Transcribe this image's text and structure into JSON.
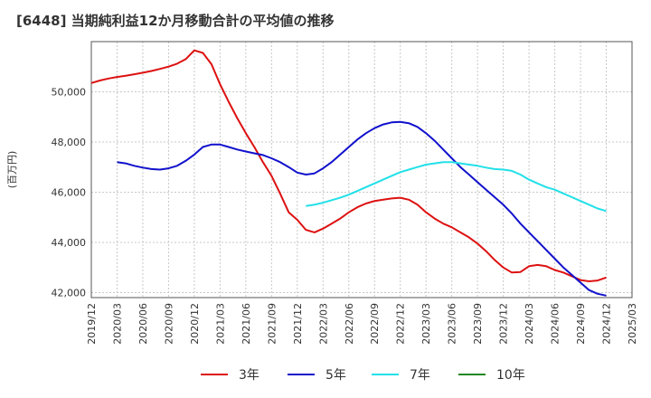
{
  "chart_data": {
    "type": "line",
    "title": "[6448]  当期純利益12か月移動合計の平均値の推移",
    "ylabel": "(百万円)",
    "xlabel": "",
    "ylim": [
      41800,
      52000
    ],
    "yticks": [
      42000,
      44000,
      46000,
      48000,
      50000
    ],
    "ytick_labels": [
      "42,000",
      "44,000",
      "46,000",
      "48,000",
      "50,000"
    ],
    "xticks": [
      "2019/12",
      "2020/03",
      "2020/06",
      "2020/09",
      "2020/12",
      "2021/03",
      "2021/06",
      "2021/09",
      "2021/12",
      "2022/03",
      "2022/06",
      "2022/09",
      "2022/12",
      "2023/03",
      "2023/06",
      "2023/09",
      "2023/12",
      "2024/03",
      "2024/06",
      "2024/09",
      "2024/12",
      "2025/03"
    ],
    "grid": true,
    "legend_position": "bottom",
    "series": [
      {
        "name": "3年",
        "color": "#dd1111",
        "points": [
          [
            "2019/12",
            50350
          ],
          [
            "2020/01",
            50450
          ],
          [
            "2020/02",
            50530
          ],
          [
            "2020/03",
            50590
          ],
          [
            "2020/04",
            50640
          ],
          [
            "2020/05",
            50700
          ],
          [
            "2020/06",
            50760
          ],
          [
            "2020/07",
            50830
          ],
          [
            "2020/08",
            50910
          ],
          [
            "2020/09",
            51000
          ],
          [
            "2020/10",
            51120
          ],
          [
            "2020/11",
            51300
          ],
          [
            "2020/12",
            51650
          ],
          [
            "2021/01",
            51550
          ],
          [
            "2021/02",
            51100
          ],
          [
            "2021/03",
            50300
          ],
          [
            "2021/04",
            49600
          ],
          [
            "2021/05",
            48950
          ],
          [
            "2021/06",
            48350
          ],
          [
            "2021/07",
            47800
          ],
          [
            "2021/08",
            47200
          ],
          [
            "2021/09",
            46650
          ],
          [
            "2021/10",
            45950
          ],
          [
            "2021/11",
            45200
          ],
          [
            "2021/12",
            44900
          ],
          [
            "2022/01",
            44500
          ],
          [
            "2022/02",
            44400
          ],
          [
            "2022/03",
            44550
          ],
          [
            "2022/04",
            44750
          ],
          [
            "2022/05",
            44950
          ],
          [
            "2022/06",
            45200
          ],
          [
            "2022/07",
            45400
          ],
          [
            "2022/08",
            45550
          ],
          [
            "2022/09",
            45650
          ],
          [
            "2022/10",
            45700
          ],
          [
            "2022/11",
            45750
          ],
          [
            "2022/12",
            45780
          ],
          [
            "2023/01",
            45700
          ],
          [
            "2023/02",
            45500
          ],
          [
            "2023/03",
            45200
          ],
          [
            "2023/04",
            44950
          ],
          [
            "2023/05",
            44750
          ],
          [
            "2023/06",
            44600
          ],
          [
            "2023/07",
            44400
          ],
          [
            "2023/08",
            44200
          ],
          [
            "2023/09",
            43950
          ],
          [
            "2023/10",
            43650
          ],
          [
            "2023/11",
            43300
          ],
          [
            "2023/12",
            43000
          ],
          [
            "2024/01",
            42800
          ],
          [
            "2024/02",
            42820
          ],
          [
            "2024/03",
            43050
          ],
          [
            "2024/04",
            43100
          ],
          [
            "2024/05",
            43050
          ],
          [
            "2024/06",
            42900
          ],
          [
            "2024/07",
            42800
          ],
          [
            "2024/08",
            42650
          ],
          [
            "2024/09",
            42500
          ],
          [
            "2024/10",
            42450
          ],
          [
            "2024/11",
            42480
          ],
          [
            "2024/12",
            42600
          ]
        ]
      },
      {
        "name": "5年",
        "color": "#1111cc",
        "points": [
          [
            "2020/03",
            47200
          ],
          [
            "2020/04",
            47150
          ],
          [
            "2020/05",
            47050
          ],
          [
            "2020/06",
            46980
          ],
          [
            "2020/07",
            46920
          ],
          [
            "2020/08",
            46900
          ],
          [
            "2020/09",
            46950
          ],
          [
            "2020/10",
            47050
          ],
          [
            "2020/11",
            47250
          ],
          [
            "2020/12",
            47500
          ],
          [
            "2021/01",
            47800
          ],
          [
            "2021/02",
            47900
          ],
          [
            "2021/03",
            47900
          ],
          [
            "2021/04",
            47800
          ],
          [
            "2021/05",
            47700
          ],
          [
            "2021/06",
            47620
          ],
          [
            "2021/07",
            47550
          ],
          [
            "2021/08",
            47480
          ],
          [
            "2021/09",
            47350
          ],
          [
            "2021/10",
            47200
          ],
          [
            "2021/11",
            47000
          ],
          [
            "2021/12",
            46780
          ],
          [
            "2022/01",
            46700
          ],
          [
            "2022/02",
            46750
          ],
          [
            "2022/03",
            46950
          ],
          [
            "2022/04",
            47200
          ],
          [
            "2022/05",
            47500
          ],
          [
            "2022/06",
            47800
          ],
          [
            "2022/07",
            48100
          ],
          [
            "2022/08",
            48350
          ],
          [
            "2022/09",
            48550
          ],
          [
            "2022/10",
            48700
          ],
          [
            "2022/11",
            48780
          ],
          [
            "2022/12",
            48800
          ],
          [
            "2023/01",
            48750
          ],
          [
            "2023/02",
            48600
          ],
          [
            "2023/03",
            48350
          ],
          [
            "2023/04",
            48050
          ],
          [
            "2023/05",
            47700
          ],
          [
            "2023/06",
            47350
          ],
          [
            "2023/07",
            47000
          ],
          [
            "2023/08",
            46700
          ],
          [
            "2023/09",
            46400
          ],
          [
            "2023/10",
            46100
          ],
          [
            "2023/11",
            45800
          ],
          [
            "2023/12",
            45500
          ],
          [
            "2024/01",
            45150
          ],
          [
            "2024/02",
            44750
          ],
          [
            "2024/03",
            44400
          ],
          [
            "2024/04",
            44050
          ],
          [
            "2024/05",
            43700
          ],
          [
            "2024/06",
            43350
          ],
          [
            "2024/07",
            43000
          ],
          [
            "2024/08",
            42700
          ],
          [
            "2024/09",
            42400
          ],
          [
            "2024/10",
            42100
          ],
          [
            "2024/11",
            41950
          ],
          [
            "2024/12",
            41880
          ]
        ]
      },
      {
        "name": "7年",
        "color": "#22e0e8",
        "points": [
          [
            "2022/01",
            45450
          ],
          [
            "2022/02",
            45500
          ],
          [
            "2022/03",
            45580
          ],
          [
            "2022/04",
            45680
          ],
          [
            "2022/05",
            45780
          ],
          [
            "2022/06",
            45900
          ],
          [
            "2022/07",
            46050
          ],
          [
            "2022/08",
            46200
          ],
          [
            "2022/09",
            46350
          ],
          [
            "2022/10",
            46500
          ],
          [
            "2022/11",
            46650
          ],
          [
            "2022/12",
            46800
          ],
          [
            "2023/01",
            46900
          ],
          [
            "2023/02",
            47000
          ],
          [
            "2023/03",
            47100
          ],
          [
            "2023/04",
            47150
          ],
          [
            "2023/05",
            47200
          ],
          [
            "2023/06",
            47200
          ],
          [
            "2023/07",
            47150
          ],
          [
            "2023/08",
            47100
          ],
          [
            "2023/09",
            47050
          ],
          [
            "2023/10",
            46980
          ],
          [
            "2023/11",
            46920
          ],
          [
            "2023/12",
            46900
          ],
          [
            "2024/01",
            46850
          ],
          [
            "2024/02",
            46700
          ],
          [
            "2024/03",
            46500
          ],
          [
            "2024/04",
            46350
          ],
          [
            "2024/05",
            46200
          ],
          [
            "2024/06",
            46100
          ],
          [
            "2024/07",
            45950
          ],
          [
            "2024/08",
            45800
          ],
          [
            "2024/09",
            45650
          ],
          [
            "2024/10",
            45500
          ],
          [
            "2024/11",
            45350
          ],
          [
            "2024/12",
            45250
          ]
        ]
      },
      {
        "name": "10年",
        "color": "#228822",
        "points": []
      }
    ]
  }
}
